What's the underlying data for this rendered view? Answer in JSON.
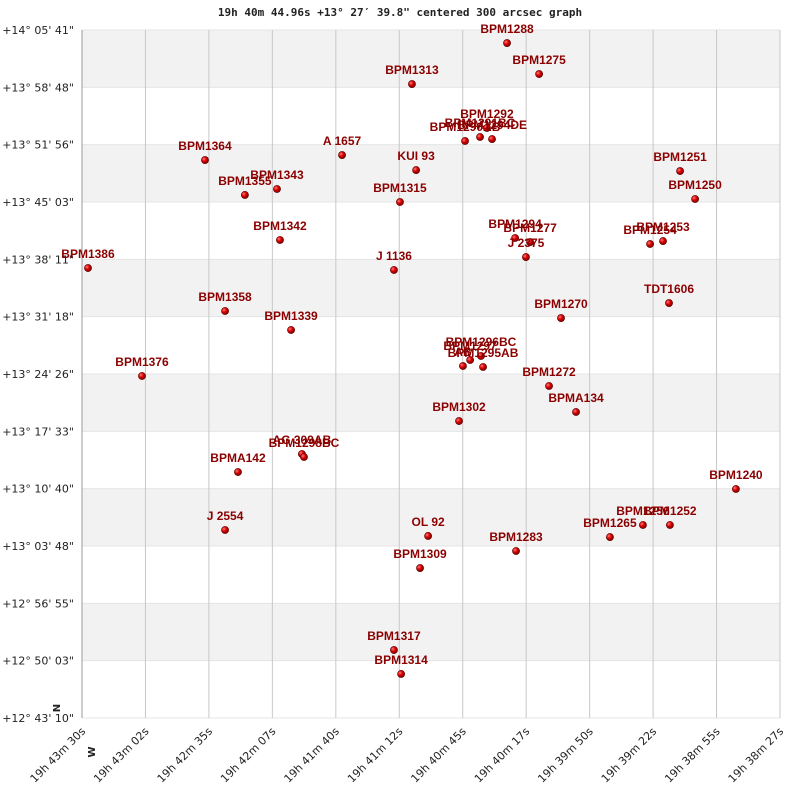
{
  "chart_data": {
    "type": "scatter",
    "title": "19h 40m 44.96s +13° 27′ 39.8\" centered 300 arcsec graph",
    "x_direction": "W",
    "y_direction": "N",
    "color": "#cc0000",
    "label_color": "#8b0000",
    "bands": true,
    "grid": true,
    "point_labels": [
      "BPM1288",
      "BPM1275",
      "BPM1313",
      "BPM1290AB",
      "BPM1291BC",
      "BPM1292",
      "BPM1294DE",
      "A  1657",
      "KUI  93",
      "BPM1364",
      "BPM1343",
      "BPM1355",
      "BPM1315",
      "BPM1251",
      "BPM1250",
      "BPM1342",
      "BPM1294",
      "BPM1277",
      "J  2375",
      "BPM1253",
      "BPM1254",
      "BPM1386",
      "J  1136",
      "BPM1358",
      "TDT1606",
      "BPM1270",
      "BPM1339",
      "AB",
      "BPM1296BC",
      "BPM1297",
      "BPM1295AB",
      "BPM1376",
      "BPM1272",
      "BPMA134",
      "BPM1302",
      "AG  309AB",
      "BPM1298BC",
      "BPMA142",
      "BPM1240",
      "J  2554",
      "OL   92",
      "BPM1265",
      "BPM1256",
      "BPM1252",
      "BPM1283",
      "BPM1309",
      "BPM1317",
      "BPM1314"
    ],
    "x": [
      2425.8,
      2411.9,
      2467.0,
      2444.0,
      2437.5,
      2434.5,
      2432.3,
      2497.3,
      2465.2,
      2556.7,
      2525.5,
      2539.4,
      2472.2,
      2350.8,
      2344.3,
      2524.2,
      2422.3,
      2415.8,
      2417.6,
      2358.2,
      2363.8,
      2607.4,
      2474.8,
      2548.0,
      2355.6,
      2402.4,
      2519.4,
      2444.9,
      2437.1,
      2441.8,
      2436.2,
      2584.0,
      2407.6,
      2395.9,
      2446.6,
      2514.7,
      2513.8,
      2542.4,
      2326.6,
      2548.0,
      2460.0,
      2381.2,
      2366.9,
      2355.2,
      2421.9,
      2463.5,
      2474.8,
      2471.7
    ],
    "y": [
      50647,
      50424,
      50352,
      49942,
      49971,
      50036,
      49956,
      49841,
      49733,
      49805,
      49597,
      49554,
      49503,
      49726,
      49525,
      49230,
      49244,
      49215,
      49107,
      49222,
      49201,
      49028,
      49014,
      48719,
      48776,
      48668,
      48582,
      48323,
      48395,
      48366,
      48316,
      48251,
      48179,
      47992,
      47927,
      47690,
      47668,
      47560,
      47438,
      47143,
      47100,
      47092,
      47179,
      47179,
      46992,
      46869,
      46279,
      46107
    ],
    "xlim": [
      2610,
      2307.5
    ],
    "ylim": [
      45790,
      50741
    ],
    "xticks": [
      {
        "value": 2610,
        "label": "19h 43m 30s"
      },
      {
        "value": 2582.5,
        "label": "19h 43m 02s"
      },
      {
        "value": 2555,
        "label": "19h 42m 35s"
      },
      {
        "value": 2527.5,
        "label": "19h 42m 07s"
      },
      {
        "value": 2500,
        "label": "19h 41m 40s"
      },
      {
        "value": 2472.5,
        "label": "19h 41m 12s"
      },
      {
        "value": 2445,
        "label": "19h 40m 45s"
      },
      {
        "value": 2417.5,
        "label": "19h 40m 17s"
      },
      {
        "value": 2390,
        "label": "19h 39m 50s"
      },
      {
        "value": 2362.5,
        "label": "19h 39m 22s"
      },
      {
        "value": 2335,
        "label": "19h 38m 55s"
      },
      {
        "value": 2307.5,
        "label": "19h 38m 27s"
      }
    ],
    "yticks": [
      {
        "value": 45790,
        "label": "+12° 43' 10\""
      },
      {
        "value": 46202.6,
        "label": "+12° 50' 03\""
      },
      {
        "value": 46615.2,
        "label": "+12° 56' 55\""
      },
      {
        "value": 47027.8,
        "label": "+13° 03' 48\""
      },
      {
        "value": 47440.3,
        "label": "+13° 10' 40\""
      },
      {
        "value": 47852.9,
        "label": "+13° 17' 33\""
      },
      {
        "value": 48265.5,
        "label": "+13° 24' 26\""
      },
      {
        "value": 48678.1,
        "label": "+13° 31' 18\""
      },
      {
        "value": 49090.7,
        "label": "+13° 38' 11\""
      },
      {
        "value": 49503.3,
        "label": "+13° 45' 03\""
      },
      {
        "value": 49915.8,
        "label": "+13° 51' 56\""
      },
      {
        "value": 50328.4,
        "label": "+13° 58' 48\""
      },
      {
        "value": 50741,
        "label": "+14° 05' 41\""
      }
    ]
  }
}
